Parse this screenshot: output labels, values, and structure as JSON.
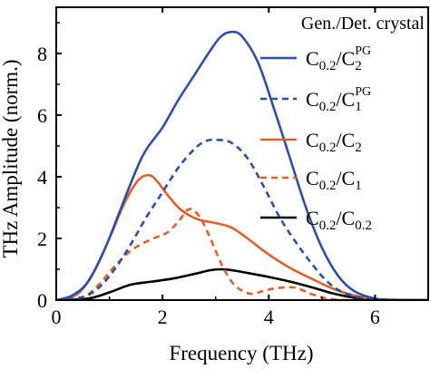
{
  "chart_data": {
    "type": "line",
    "title": "",
    "xlabel": "Frequency (THz)",
    "ylabel": "THz Amplitude (norm.)",
    "xlim": [
      0,
      7
    ],
    "ylim": [
      0,
      9.5
    ],
    "xticks": [
      0,
      2,
      4,
      6
    ],
    "yticks": [
      0,
      2,
      4,
      6,
      8
    ],
    "x_tick_labels": [
      "0",
      "2",
      "4",
      "6"
    ],
    "y_tick_labels": [
      "0",
      "2",
      "4",
      "6",
      "8"
    ],
    "grid": false,
    "legend_title": "Gen./Det. crystal",
    "legend_position": "top-right",
    "series": [
      {
        "name": "C0.2/C2PG",
        "label": {
          "base": "C",
          "sub1": "0.2",
          "mid": "/C",
          "sub2": "2",
          "sup2": "PG"
        },
        "color": "#2f4fa3",
        "dash": "solid",
        "x": [
          0,
          0.3,
          0.6,
          0.9,
          1.2,
          1.5,
          1.7,
          2.0,
          2.3,
          2.6,
          2.9,
          3.1,
          3.3,
          3.5,
          3.8,
          4.1,
          4.4,
          4.7,
          5.0,
          5.3,
          5.6,
          6.0,
          6.4,
          7.0
        ],
        "y": [
          0,
          0.15,
          0.6,
          1.6,
          2.9,
          4.2,
          4.9,
          5.6,
          6.5,
          7.3,
          8.1,
          8.55,
          8.7,
          8.55,
          7.7,
          6.2,
          4.6,
          3.0,
          1.7,
          0.8,
          0.3,
          0.05,
          0,
          0
        ]
      },
      {
        "name": "C0.2/C1PG",
        "label": {
          "base": "C",
          "sub1": "0.2",
          "mid": "/C",
          "sub2": "1",
          "sup2": "PG"
        },
        "color": "#2f4fa3",
        "dash": "dashed",
        "x": [
          0,
          0.5,
          0.8,
          1.1,
          1.4,
          1.7,
          2.0,
          2.3,
          2.6,
          2.8,
          3.0,
          3.3,
          3.6,
          3.9,
          4.2,
          4.5,
          4.8,
          5.1,
          5.4,
          5.8,
          6.2,
          7.0
        ],
        "y": [
          0,
          0.1,
          0.4,
          1.0,
          1.8,
          2.7,
          3.5,
          4.3,
          4.9,
          5.15,
          5.2,
          5.1,
          4.6,
          3.7,
          2.7,
          1.9,
          1.2,
          0.6,
          0.25,
          0.05,
          0,
          0
        ]
      },
      {
        "name": "C0.2/C2",
        "label": {
          "base": "C",
          "sub1": "0.2",
          "mid": "/C",
          "sub2": "2",
          "sup2": ""
        },
        "color": "#d9622b",
        "dash": "solid",
        "x": [
          0,
          0.4,
          0.7,
          1.0,
          1.3,
          1.55,
          1.75,
          1.9,
          2.1,
          2.3,
          2.5,
          2.7,
          3.0,
          3.3,
          3.6,
          3.9,
          4.2,
          4.5,
          4.8,
          5.1,
          5.4,
          5.8,
          6.2,
          7.0
        ],
        "y": [
          0,
          0.2,
          0.9,
          2.0,
          3.2,
          3.9,
          4.05,
          3.85,
          3.4,
          3.0,
          2.75,
          2.6,
          2.5,
          2.35,
          2.0,
          1.6,
          1.25,
          0.95,
          0.7,
          0.45,
          0.25,
          0.08,
          0,
          0
        ]
      },
      {
        "name": "C0.2/C1",
        "label": {
          "base": "C",
          "sub1": "0.2",
          "mid": "/C",
          "sub2": "1",
          "sup2": ""
        },
        "color": "#d9622b",
        "dash": "dashed",
        "x": [
          0,
          0.5,
          0.8,
          1.1,
          1.4,
          1.7,
          1.9,
          2.1,
          2.3,
          2.5,
          2.7,
          2.9,
          3.1,
          3.3,
          3.5,
          3.7,
          3.9,
          4.2,
          4.5,
          4.8,
          5.1,
          5.5,
          6.0,
          7.0
        ],
        "y": [
          0,
          0.1,
          0.5,
          1.1,
          1.6,
          1.9,
          2.05,
          2.2,
          2.55,
          2.95,
          2.7,
          2.0,
          1.2,
          0.6,
          0.3,
          0.2,
          0.3,
          0.4,
          0.4,
          0.2,
          0.05,
          0,
          0,
          0
        ]
      },
      {
        "name": "C0.2/C0.2",
        "label": {
          "base": "C",
          "sub1": "0.2",
          "mid": "/C",
          "sub2": "0.2",
          "sup2": ""
        },
        "color": "#000000",
        "dash": "solid",
        "x": [
          0,
          0.6,
          1.0,
          1.4,
          1.8,
          2.2,
          2.6,
          2.9,
          3.1,
          3.3,
          3.6,
          4.0,
          4.4,
          4.8,
          5.2,
          5.6,
          6.0,
          7.0
        ],
        "y": [
          0,
          0.05,
          0.25,
          0.5,
          0.6,
          0.7,
          0.85,
          0.97,
          1.0,
          0.97,
          0.88,
          0.75,
          0.6,
          0.42,
          0.22,
          0.08,
          0.02,
          0
        ]
      }
    ]
  }
}
